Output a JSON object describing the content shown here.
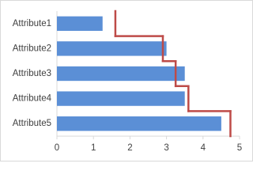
{
  "chart_data": {
    "type": "bar",
    "orientation": "horizontal",
    "categories": [
      "Attribute1",
      "Attribute2",
      "Attribute3",
      "Attribute4",
      "Attribute5"
    ],
    "series": [
      {
        "type": "bar",
        "color": "#5b8fd6",
        "values": [
          1.25,
          3.0,
          3.5,
          3.5,
          4.5
        ]
      },
      {
        "type": "step",
        "color": "#be4b48",
        "values": [
          1.6,
          2.9,
          3.25,
          3.6,
          4.75
        ]
      }
    ],
    "xlim": [
      0,
      5
    ],
    "xticks": [
      0,
      1,
      2,
      3,
      4,
      5
    ],
    "grid": false
  }
}
